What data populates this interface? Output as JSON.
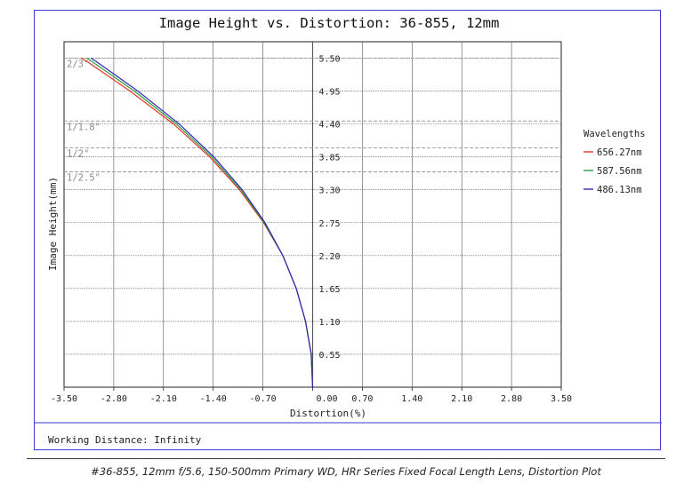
{
  "chart_data": {
    "type": "line",
    "title": "Image Height vs. Distortion: 36-855, 12mm",
    "xlabel": "Distortion(%)",
    "ylabel": "Image Height(mm)",
    "xlim": [
      -3.5,
      3.5
    ],
    "ylim": [
      0,
      5.775
    ],
    "x_ticks": [
      "-3.50",
      "-2.80",
      "-2.10",
      "-1.40",
      "-0.70",
      "0.00",
      "0.70",
      "1.40",
      "2.10",
      "2.80",
      "3.50"
    ],
    "y_ticks": [
      "0.55",
      "1.10",
      "1.65",
      "2.20",
      "2.75",
      "3.30",
      "3.85",
      "4.40",
      "4.95",
      "5.50"
    ],
    "grid": true,
    "legend_title": "Wavelengths",
    "legend_position": "right",
    "sensor_lines": [
      {
        "label": "2/3\"",
        "y": 5.5
      },
      {
        "label": "1/1.8\"",
        "y": 4.45
      },
      {
        "label": "1/2\"",
        "y": 4.0
      },
      {
        "label": "1/2.5\"",
        "y": 3.6
      }
    ],
    "series": [
      {
        "name": "656.27nm",
        "color": "#e8322a",
        "points": [
          [
            0,
            0
          ],
          [
            -0.02,
            0.55
          ],
          [
            -0.1,
            1.1
          ],
          [
            -0.23,
            1.65
          ],
          [
            -0.42,
            2.2
          ],
          [
            -0.69,
            2.75
          ],
          [
            -1.03,
            3.3
          ],
          [
            -1.45,
            3.85
          ],
          [
            -1.96,
            4.4
          ],
          [
            -2.57,
            4.95
          ],
          [
            -3.17,
            5.44
          ],
          [
            -3.26,
            5.5
          ]
        ]
      },
      {
        "name": "587.56nm",
        "color": "#2e9a3a",
        "points": [
          [
            0,
            0
          ],
          [
            -0.02,
            0.55
          ],
          [
            -0.1,
            1.1
          ],
          [
            -0.23,
            1.65
          ],
          [
            -0.42,
            2.2
          ],
          [
            -0.68,
            2.75
          ],
          [
            -1.01,
            3.3
          ],
          [
            -1.42,
            3.85
          ],
          [
            -1.92,
            4.4
          ],
          [
            -2.51,
            4.95
          ],
          [
            -3.1,
            5.44
          ],
          [
            -3.18,
            5.5
          ]
        ]
      },
      {
        "name": "486.13nm",
        "color": "#2a2ab8",
        "points": [
          [
            0,
            0
          ],
          [
            -0.02,
            0.55
          ],
          [
            -0.1,
            1.1
          ],
          [
            -0.23,
            1.65
          ],
          [
            -0.42,
            2.2
          ],
          [
            -0.67,
            2.75
          ],
          [
            -0.99,
            3.3
          ],
          [
            -1.39,
            3.85
          ],
          [
            -1.88,
            4.4
          ],
          [
            -2.46,
            4.95
          ],
          [
            -3.04,
            5.44
          ],
          [
            -3.12,
            5.5
          ]
        ]
      }
    ]
  },
  "footer": {
    "working_distance": "Working Distance: Infinity"
  },
  "caption": "#36-855, 12mm f/5.6, 150-500mm Primary WD, HRr Series Fixed Focal Length Lens, Distortion Plot"
}
